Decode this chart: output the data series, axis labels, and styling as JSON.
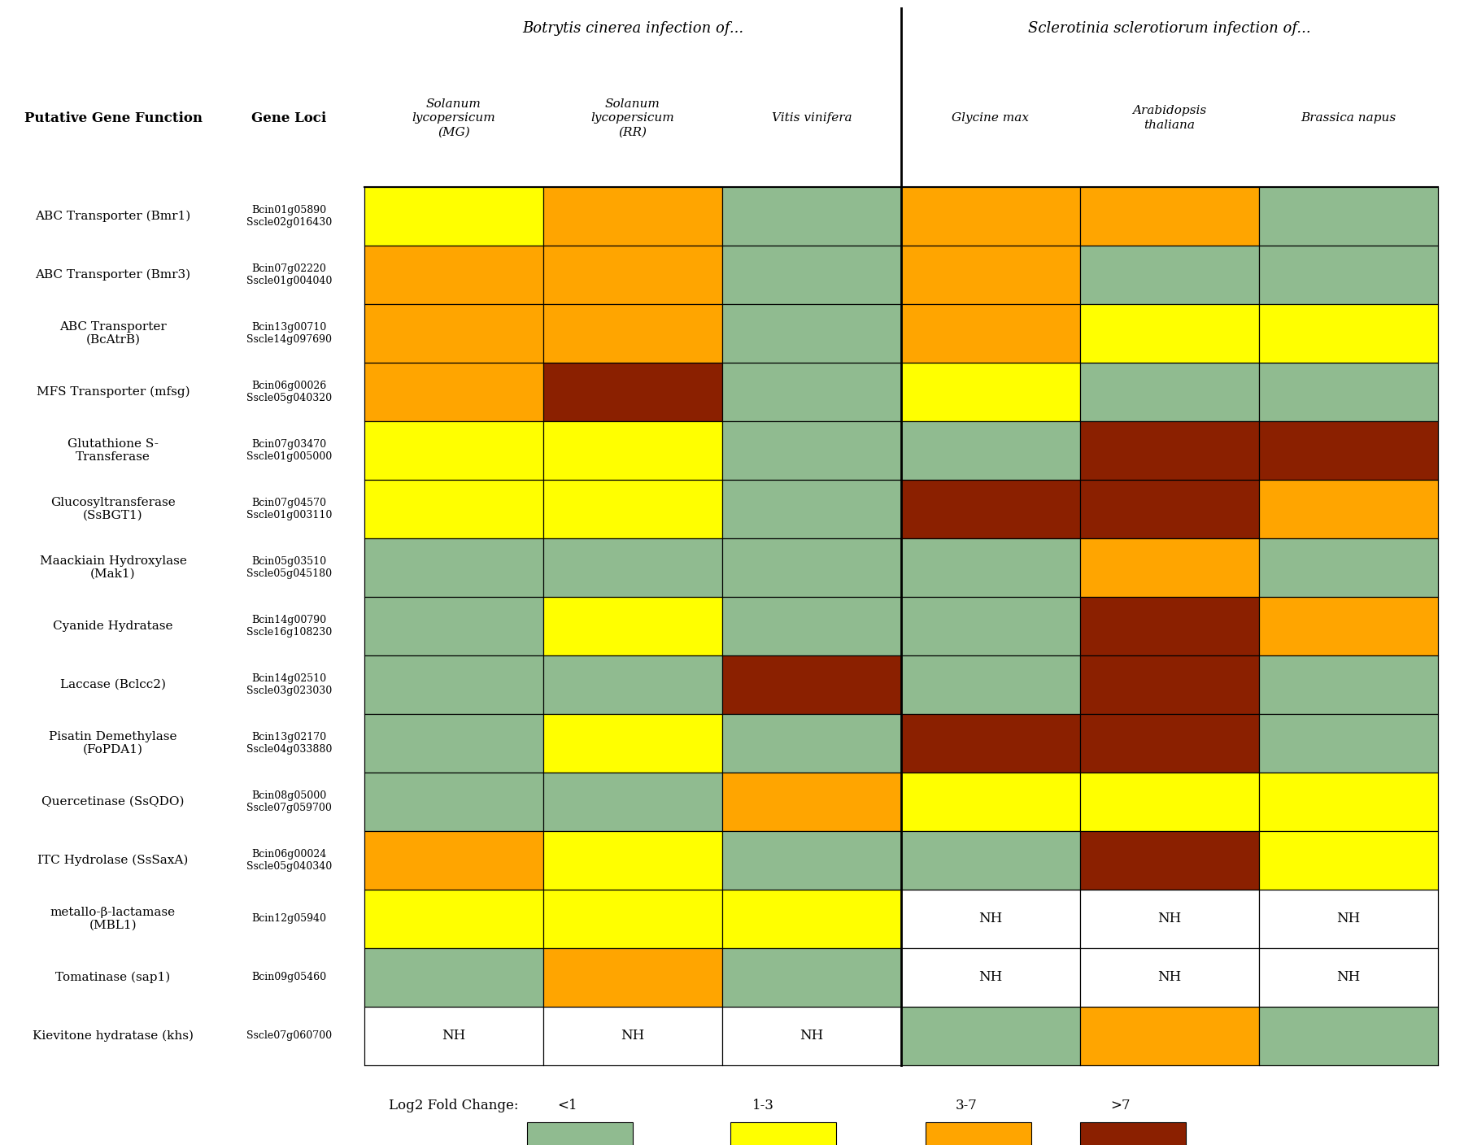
{
  "gene_functions": [
    "ABC Transporter (Bmr1)",
    "ABC Transporter (Bmr3)",
    "ABC Transporter\n(BcAtrB)",
    "MFS Transporter (mfsg)",
    "Glutathione S-\nTransferase",
    "Glucosyltransferase\n(SsBGT1)",
    "Maackiain Hydroxylase\n(Mak1)",
    "Cyanide Hydratase",
    "Laccase (Bclcc2)",
    "Pisatin Demethylase\n(FoPDA1)",
    "Quercetinase (SsQDO)",
    "ITC Hydrolase (SsSaxA)",
    "metallo-β-lactamase\n(MBL1)",
    "Tomatinase (sap1)",
    "Kievitone hydratase (khs)"
  ],
  "gene_functions_italic_parts": [
    [
      "ABC Transporter (",
      "Bmr1",
      ")"
    ],
    [
      "ABC Transporter (",
      "Bmr3",
      ")"
    ],
    [
      "ABC Transporter\n(",
      "BcAtrB",
      ")"
    ],
    [
      "MFS Transporter (",
      "mfsg",
      ")"
    ],
    [
      "Glutathione S-\nTransferase",
      "",
      ""
    ],
    [
      "Glucosyltransferase\n(",
      "SsBGT1",
      ")"
    ],
    [
      "Maackiain Hydroxylase\n(",
      "Mak1",
      ")"
    ],
    [
      "Cyanide Hydratase",
      "",
      ""
    ],
    [
      "Laccase (",
      "Bclcc2",
      ")"
    ],
    [
      "Pisatin Demethylase\n(",
      "FoPDA1",
      ")"
    ],
    [
      "Quercetinase (",
      "SsQDO",
      ")"
    ],
    [
      "ITC Hydrolase (",
      "SsSaxA",
      ")"
    ],
    [
      "metallo-β-lactamase\n(",
      "MBL1",
      ")"
    ],
    [
      "Tomatinase (",
      "sap1",
      ")"
    ],
    [
      "Kievitone hydratase (",
      "khs",
      ")"
    ]
  ],
  "gene_loci": [
    "Bcin01g05890\nSscle02g016430",
    "Bcin07g02220\nSscle01g004040",
    "Bcin13g00710\nSscle14g097690",
    "Bcin06g00026\nSscle05g040320",
    "Bcin07g03470\nSscle01g005000",
    "Bcin07g04570\nSscle01g003110",
    "Bcin05g03510\nSscle05g045180",
    "Bcin14g00790\nSscle16g108230",
    "Bcin14g02510\nSscle03g023030",
    "Bcin13g02170\nSscle04g033880",
    "Bcin08g05000\nSscle07g059700",
    "Bcin06g00024\nSscle05g040340",
    "Bcin12g05940",
    "Bcin09g05460",
    "Sscle07g060700"
  ],
  "col_headers": [
    "Solanum\nlycopersicum\n(MG)",
    "Solanum\nlycopersicum\n(RR)",
    "Vitis vinifera",
    "Glycine max",
    "Arabidopsis\nthaliana",
    "Brassica napus"
  ],
  "heatmap": [
    [
      "yellow",
      "orange",
      "green",
      "orange",
      "orange",
      "green"
    ],
    [
      "orange",
      "orange",
      "green",
      "orange",
      "green",
      "green"
    ],
    [
      "orange",
      "orange",
      "green",
      "orange",
      "yellow",
      "yellow"
    ],
    [
      "orange",
      "brown",
      "green",
      "yellow",
      "green",
      "green"
    ],
    [
      "yellow",
      "yellow",
      "green",
      "green",
      "brown",
      "brown"
    ],
    [
      "yellow",
      "yellow",
      "green",
      "brown",
      "brown",
      "orange"
    ],
    [
      "green",
      "green",
      "green",
      "green",
      "orange",
      "green"
    ],
    [
      "green",
      "yellow",
      "green",
      "green",
      "brown",
      "orange"
    ],
    [
      "green",
      "green",
      "brown",
      "green",
      "brown",
      "green"
    ],
    [
      "green",
      "yellow",
      "green",
      "brown",
      "brown",
      "green"
    ],
    [
      "green",
      "green",
      "orange",
      "yellow",
      "yellow",
      "yellow"
    ],
    [
      "orange",
      "yellow",
      "green",
      "green",
      "brown",
      "yellow"
    ],
    [
      "yellow",
      "yellow",
      "yellow",
      "NH",
      "NH",
      "NH"
    ],
    [
      "green",
      "orange",
      "green",
      "NH",
      "NH",
      "NH"
    ],
    [
      "NH",
      "NH",
      "NH",
      "green",
      "orange",
      "green"
    ]
  ],
  "color_map": {
    "green": "#90bb90",
    "yellow": "#ffff00",
    "orange": "#ffa500",
    "brown": "#8b2000",
    "NH": "#ffffff"
  },
  "legend_labels": [
    "<1",
    "1-3",
    "3-7",
    ">7"
  ],
  "legend_colors": [
    "#90bb90",
    "#ffff00",
    "#ffa500",
    "#8b2000"
  ],
  "background_color": "#ffffff"
}
